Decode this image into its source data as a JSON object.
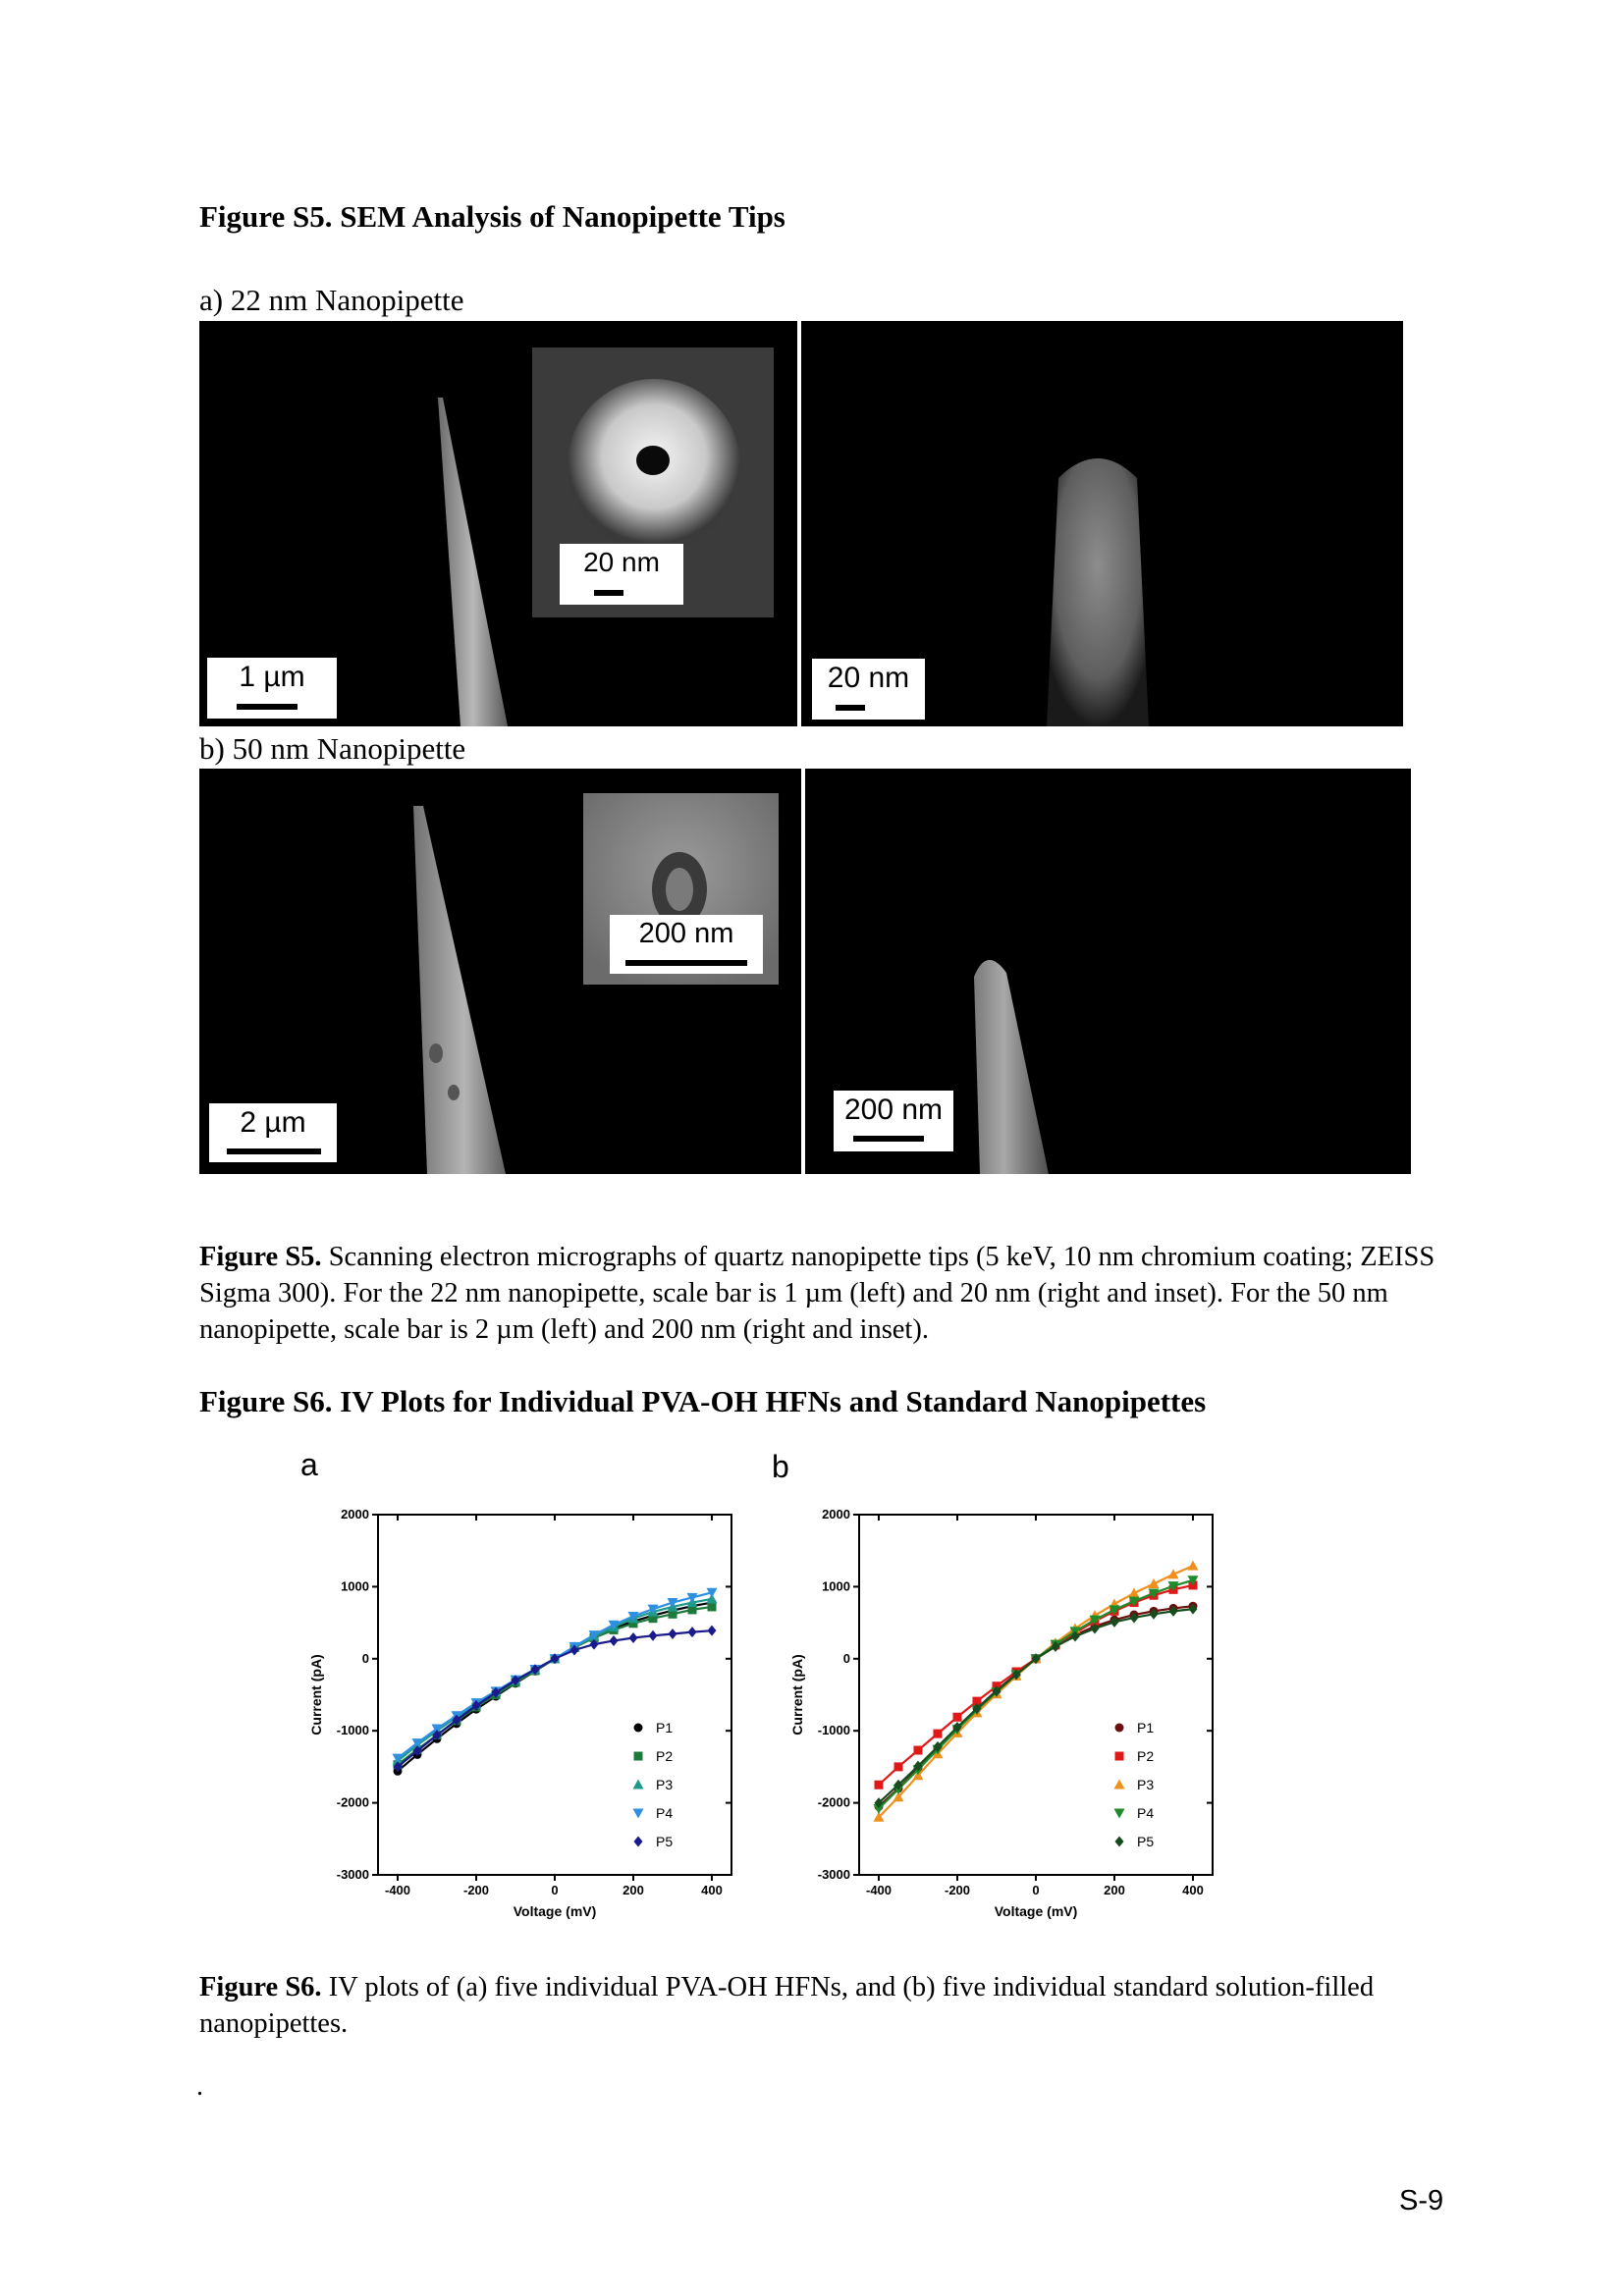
{
  "s5": {
    "heading": "Figure S5. SEM Analysis of Nanopipette Tips",
    "label_a": "a) 22 nm Nanopipette",
    "label_b": "b) 50 nm Nanopipette",
    "a_left_scale": "1 µm",
    "a_inset_scale": "20 nm",
    "a_right_scale": "20 nm",
    "b_left_scale": "2 µm",
    "b_inset_scale": "200 nm",
    "b_right_scale": "200 nm",
    "caption_label": "Figure S5.",
    "caption_text": " Scanning electron micrographs of quartz nanopipette tips (5 keV, 10 nm chromium coating; ZEISS Sigma 300). For the 22 nm nanopipette, scale bar is 1 µm (left) and 20 nm (right and inset). For the 50 nm nanopipette, scale bar is 2 µm (left) and 200 nm (right and inset)."
  },
  "s6": {
    "heading": "Figure S6. IV Plots for Individual PVA-OH HFNs and Standard Nanopipettes",
    "panel_a": "a",
    "panel_b": "b",
    "caption_label": "Figure S6.",
    "caption_text": " IV plots of (a) five individual PVA-OH HFNs, and (b) five individual standard solution-filled nanopipettes."
  },
  "stray_mark": ".",
  "page_number": "S-9",
  "chart_data": [
    {
      "type": "scatter",
      "panel": "a",
      "xlabel": "Voltage (mV)",
      "ylabel": "Current (pA)",
      "xlim": [
        -450,
        450
      ],
      "ylim": [
        -3000,
        2000
      ],
      "xticks": [
        -400,
        -200,
        0,
        200,
        400
      ],
      "yticks": [
        -3000,
        -2000,
        -1000,
        0,
        1000,
        2000
      ],
      "legend_position": "bottom-right",
      "x": [
        -400,
        -350,
        -300,
        -250,
        -200,
        -150,
        -100,
        -50,
        0,
        50,
        100,
        150,
        200,
        250,
        300,
        350,
        400
      ],
      "series": [
        {
          "name": "P1",
          "color": "#000000",
          "marker": "circle",
          "values": [
            -1560,
            -1330,
            -1110,
            -900,
            -700,
            -520,
            -340,
            -170,
            0,
            160,
            300,
            420,
            520,
            600,
            670,
            730,
            780
          ]
        },
        {
          "name": "P2",
          "color": "#1d7a3c",
          "marker": "square",
          "values": [
            -1470,
            -1260,
            -1060,
            -860,
            -670,
            -500,
            -330,
            -165,
            0,
            155,
            290,
            400,
            490,
            560,
            620,
            680,
            720
          ]
        },
        {
          "name": "P3",
          "color": "#1f9a8a",
          "marker": "triangle-up",
          "values": [
            -1420,
            -1200,
            -1000,
            -810,
            -630,
            -460,
            -300,
            -150,
            0,
            160,
            310,
            440,
            560,
            650,
            720,
            780,
            830
          ]
        },
        {
          "name": "P4",
          "color": "#2f8fe0",
          "marker": "triangle-down",
          "values": [
            -1380,
            -1170,
            -970,
            -790,
            -610,
            -450,
            -290,
            -145,
            0,
            170,
            330,
            470,
            590,
            690,
            780,
            850,
            920
          ]
        },
        {
          "name": "P5",
          "color": "#1a1a8c",
          "marker": "diamond",
          "values": [
            -1500,
            -1280,
            -1060,
            -850,
            -650,
            -470,
            -300,
            -150,
            0,
            120,
            200,
            250,
            290,
            320,
            345,
            370,
            390
          ]
        }
      ]
    },
    {
      "type": "scatter",
      "panel": "b",
      "xlabel": "Voltage (mV)",
      "ylabel": "Current (pA)",
      "xlim": [
        -450,
        450
      ],
      "ylim": [
        -3000,
        2000
      ],
      "xticks": [
        -400,
        -200,
        0,
        200,
        400
      ],
      "yticks": [
        -3000,
        -2000,
        -1000,
        0,
        1000,
        2000
      ],
      "legend_position": "bottom-right",
      "x": [
        -400,
        -350,
        -300,
        -250,
        -200,
        -150,
        -100,
        -50,
        0,
        50,
        100,
        150,
        200,
        250,
        300,
        350,
        400
      ],
      "series": [
        {
          "name": "P1",
          "color": "#6b0f0f",
          "marker": "circle",
          "values": [
            -2050,
            -1800,
            -1520,
            -1240,
            -960,
            -690,
            -440,
            -210,
            0,
            180,
            330,
            450,
            540,
            610,
            660,
            700,
            730
          ]
        },
        {
          "name": "P2",
          "color": "#e01818",
          "marker": "square",
          "values": [
            -1750,
            -1500,
            -1270,
            -1040,
            -810,
            -590,
            -380,
            -180,
            0,
            190,
            360,
            520,
            660,
            780,
            880,
            960,
            1020
          ]
        },
        {
          "name": "P3",
          "color": "#f0901c",
          "marker": "triangle-up",
          "values": [
            -2200,
            -1920,
            -1620,
            -1320,
            -1030,
            -750,
            -490,
            -240,
            0,
            220,
            420,
            600,
            760,
            910,
            1040,
            1170,
            1290
          ]
        },
        {
          "name": "P4",
          "color": "#1f8c2a",
          "marker": "triangle-down",
          "values": [
            -2080,
            -1810,
            -1540,
            -1260,
            -980,
            -710,
            -460,
            -220,
            0,
            200,
            380,
            540,
            680,
            800,
            910,
            1010,
            1090
          ]
        },
        {
          "name": "P5",
          "color": "#174d1e",
          "marker": "diamond",
          "values": [
            -2000,
            -1750,
            -1490,
            -1220,
            -950,
            -690,
            -450,
            -220,
            0,
            170,
            310,
            420,
            510,
            570,
            620,
            660,
            690
          ]
        }
      ]
    }
  ]
}
